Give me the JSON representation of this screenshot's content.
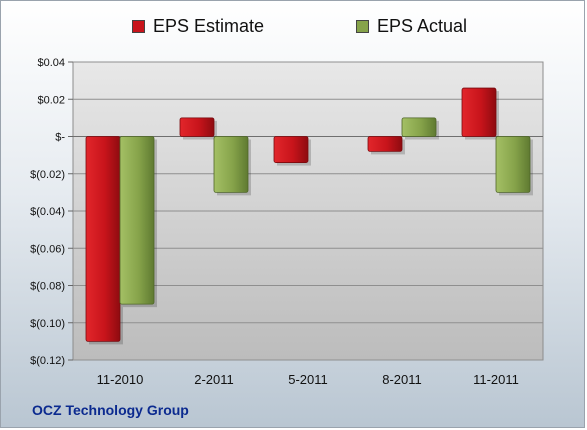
{
  "colors": {
    "estimate": "#c8141b",
    "actual": "#86a34a",
    "plot_bg_top": "#e6e6e6",
    "plot_bg_bottom": "#bdbdbd",
    "footer_text": "#0b2a8f"
  },
  "chart_data": {
    "type": "bar",
    "title": "",
    "xlabel": "",
    "ylabel": "",
    "categories": [
      "11-2010",
      "2-2011",
      "5-2011",
      "8-2011",
      "11-2011"
    ],
    "series": [
      {
        "name": "EPS Estimate",
        "values": [
          -0.11,
          0.01,
          -0.014,
          -0.008,
          0.026
        ]
      },
      {
        "name": "EPS Actual",
        "values": [
          -0.09,
          -0.03,
          null,
          0.01,
          -0.03
        ]
      }
    ],
    "ylim": [
      -0.12,
      0.04
    ],
    "yticks": [
      0.04,
      0.02,
      0,
      -0.02,
      -0.04,
      -0.06,
      -0.08,
      -0.1,
      -0.12
    ],
    "yticklabels": [
      "$0.04",
      "$0.02",
      "$-",
      "$(0.02)",
      "$(0.04)",
      "$(0.06)",
      "$(0.08)",
      "$(0.10)",
      "$(0.12)"
    ],
    "grid": true,
    "legend_position": "top"
  },
  "footer": {
    "text": "OCZ Technology Group"
  }
}
